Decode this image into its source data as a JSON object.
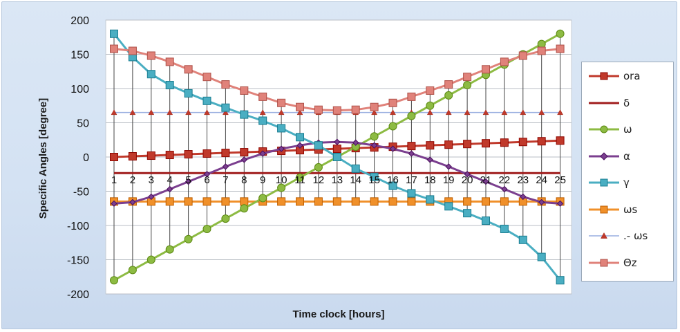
{
  "chart_data": {
    "type": "line",
    "title": "",
    "xlabel": "Time clock [hours]",
    "ylabel": "Specific Angles [degree]",
    "ylim": [
      -200,
      200
    ],
    "yticks": [
      200,
      150,
      100,
      50,
      0,
      -50,
      -100,
      -150,
      -200
    ],
    "categories": [
      "1",
      "2",
      "3",
      "4",
      "5",
      "6",
      "7",
      "8",
      "9",
      "10",
      "11",
      "12",
      "13",
      "14",
      "15",
      "16",
      "17",
      "18",
      "19",
      "20",
      "21",
      "22",
      "23",
      "24",
      "25"
    ],
    "legend_position": "right",
    "grid": true,
    "x_axis_line_at": -23.45,
    "series": [
      {
        "name": "ora",
        "color": "#c0392b",
        "marker": "square",
        "values": [
          0,
          1,
          2,
          3,
          4,
          5,
          6,
          7,
          8,
          9,
          10,
          11,
          12,
          13,
          14,
          15,
          16,
          17,
          18,
          19,
          20,
          21,
          22,
          23,
          24
        ]
      },
      {
        "name": "δ",
        "color": "#a01c1c",
        "marker": "none",
        "values": [
          -23.45,
          -23.45,
          -23.45,
          -23.45,
          -23.45,
          -23.45,
          -23.45,
          -23.45,
          -23.45,
          -23.45,
          -23.45,
          -23.45,
          -23.45,
          -23.45,
          -23.45,
          -23.45,
          -23.45,
          -23.45,
          -23.45,
          -23.45,
          -23.45,
          -23.45,
          -23.45,
          -23.45,
          -23.45
        ]
      },
      {
        "name": "ω",
        "color": "#8dbb43",
        "marker": "circle",
        "values": [
          -180,
          -165,
          -150,
          -135,
          -120,
          -105,
          -90,
          -75,
          -60,
          -45,
          -30,
          -15,
          0,
          15,
          30,
          45,
          60,
          75,
          90,
          105,
          120,
          135,
          150,
          165,
          180
        ]
      },
      {
        "name": "α",
        "color": "#7b3f8f",
        "marker": "diamond",
        "values": [
          -68,
          -66,
          -58,
          -47,
          -36,
          -25,
          -14,
          -4,
          5,
          12,
          17,
          21,
          22,
          21,
          17,
          12,
          5,
          -4,
          -14,
          -25,
          -36,
          -47,
          -58,
          -66,
          -68
        ]
      },
      {
        "name": "γ",
        "color": "#4aaec2",
        "marker": "square",
        "values": [
          180,
          146,
          121,
          105,
          93,
          82,
          72,
          62,
          53,
          42,
          29,
          17,
          0,
          -17,
          -29,
          -42,
          -53,
          -62,
          -72,
          -82,
          -93,
          -105,
          -121,
          -146,
          -180
        ]
      },
      {
        "name": "ωs",
        "color": "#f0902a",
        "marker": "square",
        "values": [
          -65,
          -65,
          -65,
          -65,
          -65,
          -65,
          -65,
          -65,
          -65,
          -65,
          -65,
          -65,
          -65,
          -65,
          -65,
          -65,
          -65,
          -65,
          -65,
          -65,
          -65,
          -65,
          -65,
          -65,
          -65
        ]
      },
      {
        "name": ".- ωs",
        "color": "#98aee0",
        "marker": "triangle",
        "values": [
          65,
          65,
          65,
          65,
          65,
          65,
          65,
          65,
          65,
          65,
          65,
          65,
          65,
          65,
          65,
          65,
          65,
          65,
          65,
          65,
          65,
          65,
          65,
          65,
          65
        ]
      },
      {
        "name": "Θz",
        "color": "#e0827a",
        "marker": "square",
        "values": [
          158,
          155,
          148,
          139,
          128,
          117,
          106,
          97,
          88,
          79,
          73,
          69,
          68,
          69,
          73,
          79,
          88,
          97,
          106,
          117,
          128,
          139,
          148,
          155,
          158
        ]
      }
    ]
  }
}
